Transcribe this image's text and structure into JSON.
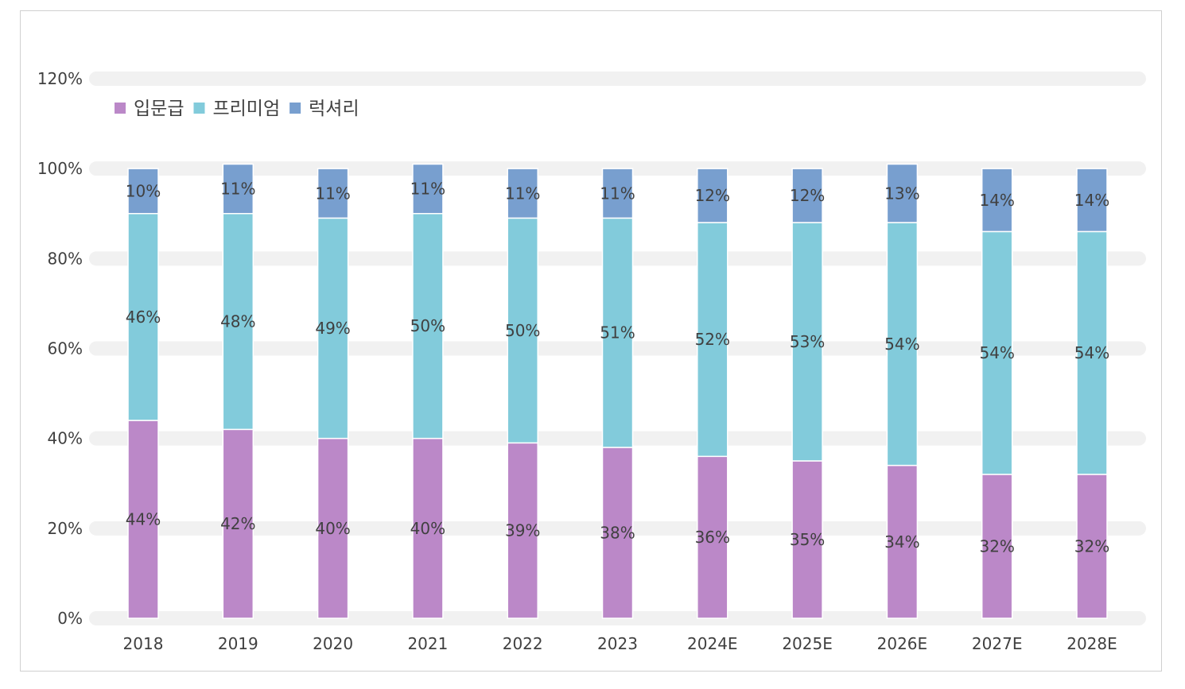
{
  "chart_data": {
    "type": "bar",
    "stacked": true,
    "title": "",
    "xlabel": "",
    "ylabel": "",
    "ylim": [
      0,
      120
    ],
    "yticks": [
      "0%",
      "20%",
      "40%",
      "60%",
      "80%",
      "100%",
      "120%"
    ],
    "ytick_values": [
      0,
      20,
      40,
      60,
      80,
      100,
      120
    ],
    "legend_position": "top-left",
    "grid": true,
    "categories": [
      "2018",
      "2019",
      "2020",
      "2021",
      "2022",
      "2023",
      "2024E",
      "2025E",
      "2026E",
      "2027E",
      "2028E"
    ],
    "series": [
      {
        "name": "입문급",
        "color": "#bb88c8",
        "values": [
          44,
          42,
          40,
          40,
          39,
          38,
          36,
          35,
          34,
          32,
          32
        ]
      },
      {
        "name": "프리미엄",
        "color": "#82cbdb",
        "values": [
          46,
          48,
          49,
          50,
          50,
          51,
          52,
          53,
          54,
          54,
          54
        ]
      },
      {
        "name": "럭셔리",
        "color": "#789fcf",
        "values": [
          10,
          11,
          11,
          11,
          11,
          11,
          12,
          12,
          13,
          14,
          14
        ]
      }
    ]
  }
}
